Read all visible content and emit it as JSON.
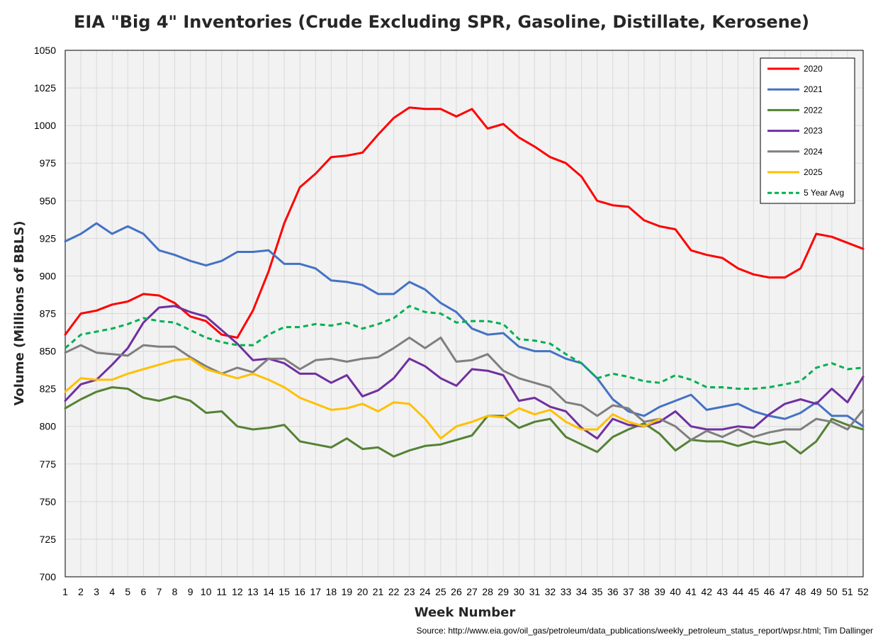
{
  "chart_data": {
    "type": "line",
    "title": "EIA \"Big 4\" Inventories (Crude Excluding SPR, Gasoline, Distillate, Kerosene)",
    "xlabel": "Week Number",
    "ylabel": "Volume (Millions of BBLS)",
    "source": "Source: http://www.eia.gov/oil_gas/petroleum/data_publications/weekly_petroleum_status_report/wpsr.html; Tim Dallinger",
    "xlim": [
      1,
      52
    ],
    "ylim": [
      700,
      1050
    ],
    "ystep": 25,
    "y_ticks": [
      "700",
      "725",
      "750",
      "775",
      "800",
      "825",
      "850",
      "875",
      "900",
      "925",
      "950",
      "975",
      "1000",
      "1025",
      "1050"
    ],
    "x_ticks": [
      "1",
      "2",
      "3",
      "4",
      "5",
      "6",
      "7",
      "8",
      "9",
      "10",
      "11",
      "12",
      "13",
      "14",
      "15",
      "16",
      "17",
      "18",
      "19",
      "20",
      "21",
      "22",
      "23",
      "24",
      "25",
      "26",
      "27",
      "28",
      "29",
      "30",
      "31",
      "32",
      "33",
      "34",
      "35",
      "36",
      "37",
      "38",
      "39",
      "40",
      "41",
      "42",
      "43",
      "44",
      "45",
      "46",
      "47",
      "48",
      "49",
      "50",
      "51",
      "52"
    ],
    "grid": true,
    "legend_position": "top-right",
    "series": [
      {
        "name": "2020",
        "color": "#ff0000",
        "dash": false,
        "values": [
          861,
          875,
          877,
          881,
          883,
          888,
          887,
          882,
          873,
          870,
          861,
          859,
          877,
          903,
          935,
          959,
          968,
          979,
          980,
          982,
          994,
          1005,
          1012,
          1011,
          1011,
          1006,
          1011,
          998,
          1001,
          992,
          986,
          979,
          975,
          966,
          950,
          947,
          946,
          937,
          933,
          931,
          917,
          914,
          912,
          905,
          901,
          899,
          899,
          905,
          928,
          926,
          922,
          918
        ]
      },
      {
        "name": "2021",
        "color": "#4472c4",
        "dash": false,
        "values": [
          923,
          928,
          935,
          928,
          933,
          928,
          917,
          914,
          910,
          907,
          910,
          916,
          916,
          917,
          908,
          908,
          905,
          897,
          896,
          894,
          888,
          888,
          896,
          891,
          882,
          876,
          865,
          861,
          862,
          853,
          850,
          850,
          845,
          842,
          832,
          818,
          810,
          807,
          813,
          817,
          821,
          811,
          813,
          815,
          810,
          807,
          805,
          809,
          816,
          807,
          807,
          800
        ]
      },
      {
        "name": "2022",
        "color": "#548235",
        "dash": false,
        "values": [
          812,
          818,
          823,
          826,
          825,
          819,
          817,
          820,
          817,
          809,
          810,
          800,
          798,
          799,
          801,
          790,
          788,
          786,
          792,
          785,
          786,
          780,
          784,
          787,
          788,
          791,
          794,
          807,
          807,
          799,
          803,
          805,
          793,
          788,
          783,
          793,
          798,
          802,
          795,
          784,
          791,
          790,
          790,
          787,
          790,
          788,
          790,
          782,
          790,
          805,
          801,
          798
        ]
      },
      {
        "name": "2023",
        "color": "#7030a0",
        "dash": false,
        "values": [
          817,
          828,
          831,
          841,
          852,
          869,
          879,
          880,
          876,
          873,
          864,
          855,
          844,
          845,
          842,
          835,
          835,
          829,
          834,
          820,
          824,
          832,
          845,
          840,
          832,
          827,
          838,
          837,
          834,
          817,
          819,
          813,
          810,
          799,
          792,
          805,
          801,
          800,
          803,
          810,
          800,
          798,
          798,
          800,
          799,
          808,
          815,
          818,
          815,
          825,
          816,
          833
        ]
      },
      {
        "name": "2024",
        "color": "#7f7f7f",
        "dash": false,
        "values": [
          849,
          854,
          849,
          848,
          847,
          854,
          853,
          853,
          846,
          840,
          835,
          839,
          836,
          845,
          845,
          838,
          844,
          845,
          843,
          845,
          846,
          852,
          859,
          852,
          859,
          843,
          844,
          848,
          837,
          832,
          829,
          826,
          816,
          814,
          807,
          814,
          812,
          803,
          805,
          800,
          791,
          797,
          793,
          798,
          793,
          796,
          798,
          798,
          805,
          803,
          798,
          811
        ]
      },
      {
        "name": "2025",
        "color": "#ffc000",
        "dash": false,
        "values": [
          823,
          832,
          831,
          831,
          835,
          838,
          841,
          844,
          845,
          838,
          835,
          832,
          835,
          831,
          826,
          819,
          815,
          811,
          812,
          815,
          810,
          816,
          815,
          805,
          792,
          800,
          803,
          807,
          806,
          812,
          808,
          811,
          803,
          798,
          798,
          808,
          803,
          800,
          805
        ]
      },
      {
        "name": "5 Year Avg",
        "color": "#00b050",
        "dash": true,
        "values": [
          852,
          861,
          863,
          865,
          868,
          872,
          870,
          869,
          864,
          859,
          856,
          854,
          854,
          861,
          866,
          866,
          868,
          867,
          869,
          865,
          868,
          872,
          880,
          876,
          875,
          869,
          870,
          870,
          868,
          858,
          857,
          855,
          848,
          842,
          832,
          835,
          833,
          830,
          829,
          834,
          831,
          826,
          826,
          825,
          825,
          826,
          828,
          830,
          839,
          842,
          838,
          839
        ]
      }
    ]
  }
}
